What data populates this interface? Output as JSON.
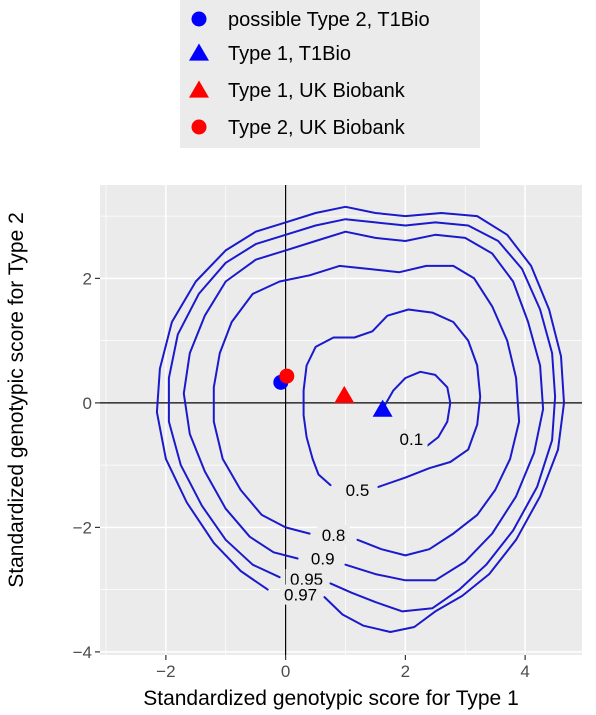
{
  "chart_data": {
    "type": "contour",
    "title": "",
    "xlabel": "Standardized genotypic score for Type 1",
    "ylabel": "Standardized genotypic score for Type 2",
    "xlim": [
      -3.1,
      4.95
    ],
    "ylim": [
      -4.05,
      3.5
    ],
    "x_ticks": [
      -2,
      0,
      2,
      4
    ],
    "y_ticks": [
      -4,
      -2,
      0,
      2
    ],
    "grid": true,
    "reference_lines": {
      "x": 0,
      "y": 0
    },
    "legend_position": "top",
    "contour_color": "#1a1acc",
    "legend": [
      {
        "label": "possible Type 2, T1Bio",
        "shape": "circle",
        "color": "#0000ff"
      },
      {
        "label": "Type 1, T1Bio",
        "shape": "triangle",
        "color": "#0000ff"
      },
      {
        "label": "Type 1, UK Biobank",
        "shape": "triangle",
        "color": "#ff0000"
      },
      {
        "label": "Type 2, UK Biobank",
        "shape": "circle",
        "color": "#ff0000"
      }
    ],
    "points": [
      {
        "series": "possible Type 2, T1Bio",
        "x": -0.08,
        "y": 0.33
      },
      {
        "series": "Type 1, T1Bio",
        "x": 1.62,
        "y": -0.1
      },
      {
        "series": "Type 1, UK Biobank",
        "x": 0.98,
        "y": 0.12
      },
      {
        "series": "Type 2, UK Biobank",
        "x": 0.02,
        "y": 0.43
      }
    ],
    "contours": [
      {
        "level": "0.1",
        "label_at": [
          2.1,
          -0.58
        ],
        "path": [
          [
            2.35,
            -0.7
          ],
          [
            2.55,
            -0.55
          ],
          [
            2.7,
            -0.3
          ],
          [
            2.75,
            0.0
          ],
          [
            2.7,
            0.25
          ],
          [
            2.5,
            0.45
          ],
          [
            2.25,
            0.5
          ],
          [
            2.0,
            0.4
          ],
          [
            1.8,
            0.2
          ],
          [
            1.65,
            -0.05
          ],
          [
            1.6,
            -0.2
          ]
        ]
      },
      {
        "level": "0.5",
        "label_at": [
          1.2,
          -1.4
        ],
        "path": [
          [
            1.55,
            -1.35
          ],
          [
            2.0,
            -1.2
          ],
          [
            2.4,
            -1.05
          ],
          [
            2.75,
            -0.95
          ],
          [
            3.05,
            -0.75
          ],
          [
            3.2,
            -0.35
          ],
          [
            3.25,
            0.1
          ],
          [
            3.2,
            0.6
          ],
          [
            3.05,
            1.0
          ],
          [
            2.8,
            1.3
          ],
          [
            2.45,
            1.45
          ],
          [
            2.05,
            1.5
          ],
          [
            1.7,
            1.4
          ],
          [
            1.45,
            1.15
          ],
          [
            1.15,
            1.05
          ],
          [
            0.8,
            1.05
          ],
          [
            0.5,
            0.9
          ],
          [
            0.35,
            0.6
          ],
          [
            0.3,
            0.2
          ],
          [
            0.3,
            -0.2
          ],
          [
            0.35,
            -0.55
          ],
          [
            0.45,
            -0.9
          ],
          [
            0.55,
            -1.15
          ],
          [
            0.75,
            -1.32
          ]
        ]
      },
      {
        "level": "0.8",
        "label_at": [
          0.8,
          -2.12
        ],
        "path": [
          [
            1.2,
            -2.2
          ],
          [
            1.6,
            -2.35
          ],
          [
            2.0,
            -2.45
          ],
          [
            2.4,
            -2.35
          ],
          [
            2.8,
            -2.1
          ],
          [
            3.2,
            -1.8
          ],
          [
            3.5,
            -1.4
          ],
          [
            3.75,
            -0.9
          ],
          [
            3.9,
            -0.3
          ],
          [
            3.85,
            0.4
          ],
          [
            3.7,
            1.0
          ],
          [
            3.45,
            1.55
          ],
          [
            3.15,
            2.0
          ],
          [
            2.8,
            2.2
          ],
          [
            2.35,
            2.2
          ],
          [
            1.9,
            2.1
          ],
          [
            1.4,
            2.15
          ],
          [
            0.9,
            2.2
          ],
          [
            0.4,
            2.05
          ],
          [
            -0.1,
            1.95
          ],
          [
            -0.55,
            1.75
          ],
          [
            -0.9,
            1.3
          ],
          [
            -1.1,
            0.8
          ],
          [
            -1.2,
            0.25
          ],
          [
            -1.2,
            -0.3
          ],
          [
            -1.05,
            -0.9
          ],
          [
            -0.75,
            -1.4
          ],
          [
            -0.4,
            -1.8
          ],
          [
            0.0,
            -2.0
          ],
          [
            0.4,
            -2.1
          ]
        ]
      },
      {
        "level": "0.9",
        "label_at": [
          0.62,
          -2.5
        ],
        "path": [
          [
            1.0,
            -2.6
          ],
          [
            1.5,
            -2.75
          ],
          [
            2.0,
            -2.85
          ],
          [
            2.5,
            -2.85
          ],
          [
            3.0,
            -2.55
          ],
          [
            3.45,
            -2.1
          ],
          [
            3.85,
            -1.5
          ],
          [
            4.15,
            -0.8
          ],
          [
            4.3,
            -0.1
          ],
          [
            4.25,
            0.6
          ],
          [
            4.05,
            1.3
          ],
          [
            3.8,
            1.95
          ],
          [
            3.45,
            2.4
          ],
          [
            3.0,
            2.65
          ],
          [
            2.5,
            2.7
          ],
          [
            2.0,
            2.6
          ],
          [
            1.5,
            2.65
          ],
          [
            1.0,
            2.75
          ],
          [
            0.5,
            2.6
          ],
          [
            0.0,
            2.45
          ],
          [
            -0.5,
            2.3
          ],
          [
            -1.0,
            1.95
          ],
          [
            -1.35,
            1.4
          ],
          [
            -1.6,
            0.8
          ],
          [
            -1.7,
            0.15
          ],
          [
            -1.6,
            -0.5
          ],
          [
            -1.35,
            -1.1
          ],
          [
            -1.0,
            -1.7
          ],
          [
            -0.6,
            -2.15
          ],
          [
            -0.2,
            -2.4
          ],
          [
            0.2,
            -2.5
          ]
        ]
      },
      {
        "level": "0.95",
        "label_at": [
          0.35,
          -2.83
        ],
        "path": [
          [
            0.75,
            -2.9
          ],
          [
            1.1,
            -3.05
          ],
          [
            1.5,
            -3.2
          ],
          [
            1.95,
            -3.35
          ],
          [
            2.45,
            -3.3
          ],
          [
            2.9,
            -3.0
          ],
          [
            3.35,
            -2.6
          ],
          [
            3.8,
            -2.05
          ],
          [
            4.2,
            -1.35
          ],
          [
            4.45,
            -0.6
          ],
          [
            4.5,
            0.1
          ],
          [
            4.45,
            0.8
          ],
          [
            4.25,
            1.5
          ],
          [
            3.95,
            2.15
          ],
          [
            3.55,
            2.6
          ],
          [
            3.05,
            2.85
          ],
          [
            2.5,
            2.9
          ],
          [
            2.0,
            2.85
          ],
          [
            1.5,
            2.9
          ],
          [
            1.0,
            2.95
          ],
          [
            0.5,
            2.85
          ],
          [
            0.0,
            2.7
          ],
          [
            -0.5,
            2.55
          ],
          [
            -1.0,
            2.25
          ],
          [
            -1.45,
            1.75
          ],
          [
            -1.8,
            1.1
          ],
          [
            -1.95,
            0.4
          ],
          [
            -1.95,
            -0.3
          ],
          [
            -1.75,
            -1.0
          ],
          [
            -1.4,
            -1.65
          ],
          [
            -1.0,
            -2.2
          ],
          [
            -0.55,
            -2.6
          ],
          [
            -0.1,
            -2.8
          ]
        ]
      },
      {
        "level": "0.97",
        "label_at": [
          0.25,
          -3.08
        ],
        "path": [
          [
            0.65,
            -3.12
          ],
          [
            0.95,
            -3.4
          ],
          [
            1.3,
            -3.58
          ],
          [
            1.75,
            -3.68
          ],
          [
            2.15,
            -3.6
          ],
          [
            2.5,
            -3.35
          ],
          [
            2.95,
            -3.1
          ],
          [
            3.4,
            -2.75
          ],
          [
            3.85,
            -2.2
          ],
          [
            4.25,
            -1.5
          ],
          [
            4.55,
            -0.75
          ],
          [
            4.65,
            0.0
          ],
          [
            4.6,
            0.75
          ],
          [
            4.4,
            1.5
          ],
          [
            4.1,
            2.2
          ],
          [
            3.7,
            2.7
          ],
          [
            3.2,
            3.0
          ],
          [
            2.6,
            3.05
          ],
          [
            2.0,
            3.0
          ],
          [
            1.5,
            3.05
          ],
          [
            1.0,
            3.15
          ],
          [
            0.5,
            3.05
          ],
          [
            0.0,
            2.9
          ],
          [
            -0.5,
            2.75
          ],
          [
            -1.0,
            2.45
          ],
          [
            -1.5,
            1.95
          ],
          [
            -1.9,
            1.3
          ],
          [
            -2.1,
            0.55
          ],
          [
            -2.15,
            -0.15
          ],
          [
            -2.0,
            -0.9
          ],
          [
            -1.65,
            -1.6
          ],
          [
            -1.2,
            -2.25
          ],
          [
            -0.75,
            -2.7
          ],
          [
            -0.3,
            -3.0
          ]
        ]
      }
    ]
  }
}
